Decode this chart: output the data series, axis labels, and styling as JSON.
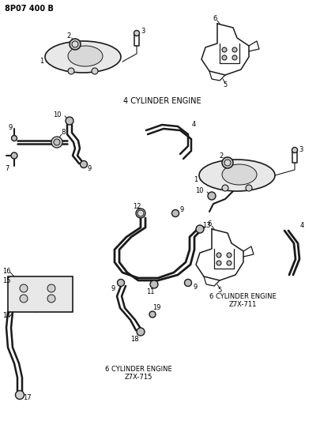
{
  "title": "8P07 400 B",
  "bg": "#ffffff",
  "lc": "#1a1a1a",
  "tc": "#000000",
  "fig_w": 4.05,
  "fig_h": 5.33,
  "dpi": 100,
  "label_4cyl": "4 CYLINDER ENGINE",
  "label_6cyl_711_line1": "6 CYLINDER ENGINE",
  "label_6cyl_711_line2": "Z7X-711",
  "label_6cyl_715_line1": "6 CYLINDER ENGINE",
  "label_6cyl_715_line2": "Z7X-715"
}
